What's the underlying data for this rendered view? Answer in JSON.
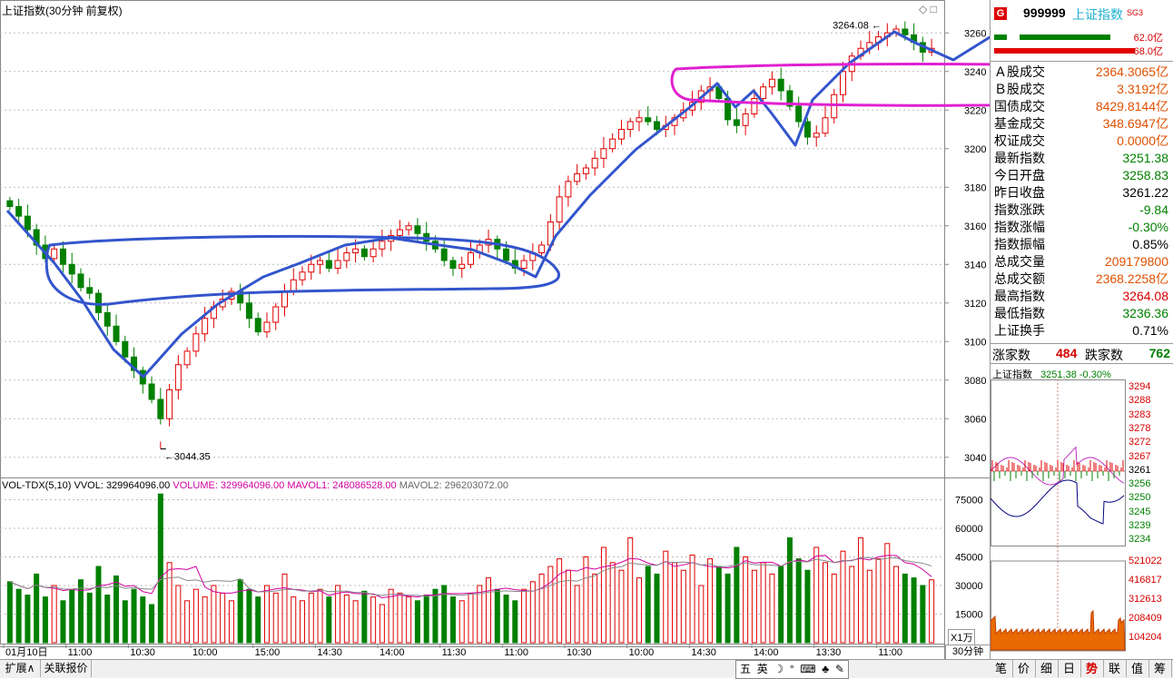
{
  "window": {
    "title": "上证指数(30分钟 前复权)",
    "corner_icons": [
      "◇",
      "□"
    ]
  },
  "chart_data": {
    "type": "candlestick",
    "title": "上证指数(30分钟 前复权)",
    "ylim": [
      3030,
      3270
    ],
    "y_ticks": [
      3040,
      3060,
      3080,
      3100,
      3120,
      3140,
      3160,
      3180,
      3200,
      3220,
      3240,
      3260
    ],
    "x_ticks": [
      "01月10日",
      "11:00",
      "10:30",
      "10:00",
      "15:00",
      "14:30",
      "14:00",
      "11:30",
      "11:00",
      "10:30",
      "10:00",
      "14:30",
      "14:00",
      "13:30",
      "11:00"
    ],
    "high_label": "3264.08",
    "low_label": "3044.35",
    "close_path": [
      3170,
      3165,
      3158,
      3150,
      3143,
      3148,
      3140,
      3135,
      3128,
      3125,
      3115,
      3108,
      3100,
      3092,
      3085,
      3078,
      3070,
      3060,
      3075,
      3088,
      3095,
      3104,
      3112,
      3118,
      3122,
      3126,
      3120,
      3112,
      3105,
      3110,
      3118,
      3126,
      3132,
      3136,
      3140,
      3142,
      3138,
      3142,
      3146,
      3148,
      3144,
      3148,
      3152,
      3155,
      3158,
      3160,
      3156,
      3152,
      3148,
      3142,
      3138,
      3140,
      3146,
      3150,
      3153,
      3148,
      3142,
      3138,
      3142,
      3146,
      3150,
      3162,
      3175,
      3183,
      3187,
      3190,
      3195,
      3200,
      3205,
      3210,
      3214,
      3216,
      3214,
      3210,
      3212,
      3216,
      3220,
      3224,
      3230,
      3232,
      3226,
      3215,
      3212,
      3218,
      3226,
      3232,
      3236,
      3230,
      3222,
      3214,
      3206,
      3208,
      3216,
      3228,
      3240,
      3248,
      3252,
      3255,
      3258,
      3260,
      3262,
      3259,
      3255,
      3250,
      3252
    ],
    "volume": {
      "label": "VOL-TDX(5,10)",
      "vvol": "VVOL: 329964096.00",
      "volume": "VOLUME: 329964096.00",
      "mavol1": "MAVOL1: 248086528.00",
      "mavol2": "MAVOL2: 296203072.00",
      "y_ticks": [
        15000,
        30000,
        45000,
        60000,
        75000
      ],
      "unit": "X1万",
      "values": [
        32,
        28,
        25,
        36,
        24,
        30,
        22,
        28,
        33,
        26,
        40,
        25,
        35,
        22,
        28,
        24,
        20,
        78,
        42,
        30,
        22,
        28,
        24,
        30,
        26,
        22,
        33,
        28,
        24,
        30,
        26,
        36,
        24,
        22,
        26,
        28,
        24,
        30,
        25,
        22,
        27,
        24,
        20,
        28,
        26,
        24,
        22,
        25,
        28,
        30,
        24,
        22,
        26,
        30,
        34,
        28,
        25,
        22,
        28,
        32,
        36,
        40,
        44,
        38,
        30,
        45,
        36,
        50,
        42,
        38,
        55,
        34,
        40,
        36,
        48,
        42,
        38,
        46,
        30,
        44,
        40,
        36,
        50,
        45,
        38,
        42,
        36,
        40,
        55,
        44,
        38,
        50,
        42,
        36,
        48,
        40,
        55,
        38,
        44,
        52,
        40,
        36,
        34,
        30,
        33
      ]
    }
  },
  "quote": {
    "icon_letter": "G",
    "code": "999999",
    "name": "上证指数",
    "sg": "SG3",
    "bar_top_label": "62.0亿",
    "bar_bottom_label": "68.0亿",
    "rows": [
      {
        "k": "Ａ股成交",
        "v": "2364.3065亿",
        "c": "orange"
      },
      {
        "k": "Ｂ股成交",
        "v": "3.3192亿",
        "c": "orange"
      },
      {
        "k": "国债成交",
        "v": "8429.8144亿",
        "c": "orange"
      },
      {
        "k": "基金成交",
        "v": "348.6947亿",
        "c": "orange"
      },
      {
        "k": "权证成交",
        "v": "0.0000亿",
        "c": "orange"
      },
      {
        "k": "最新指数",
        "v": "3251.38",
        "c": "green"
      },
      {
        "k": "今日开盘",
        "v": "3258.83",
        "c": "green"
      },
      {
        "k": "昨日收盘",
        "v": "3261.22",
        "c": "black"
      },
      {
        "k": "指数涨跌",
        "v": "-9.84",
        "c": "green"
      },
      {
        "k": "指数涨幅",
        "v": "-0.30%",
        "c": "green"
      },
      {
        "k": "指数振幅",
        "v": "0.85%",
        "c": "black"
      },
      {
        "k": "总成交量",
        "v": "209179800",
        "c": "orange"
      },
      {
        "k": "总成交额",
        "v": "2368.2258亿",
        "c": "orange"
      },
      {
        "k": "最高指数",
        "v": "3264.08",
        "c": "red"
      },
      {
        "k": "最低指数",
        "v": "3236.36",
        "c": "green"
      },
      {
        "k": "上证换手",
        "v": "0.71%",
        "c": "black"
      }
    ],
    "up_label": "涨家数",
    "up_value": "484",
    "down_label": "跌家数",
    "down_value": "762"
  },
  "mini": {
    "title": "上证指数",
    "price": "3251.38",
    "change": "-0.30%",
    "price_ticks": [
      "3294",
      "3288",
      "3283",
      "3278",
      "3272",
      "3267",
      "3261",
      "3256",
      "3250",
      "3245",
      "3239",
      "3234"
    ],
    "vol_ticks": [
      "521022",
      "416817",
      "312613",
      "208409",
      "104204"
    ]
  },
  "bottom": {
    "tabs": [
      "扩展∧",
      "关联报价"
    ],
    "period": "30分钟",
    "ime": [
      "五",
      "英",
      "☽",
      "°",
      "⌨",
      "♣",
      "✎"
    ],
    "right_tabs": [
      "笔",
      "价",
      "细",
      "日",
      "势",
      "联",
      "值",
      "筹"
    ],
    "right_selected": "势"
  }
}
